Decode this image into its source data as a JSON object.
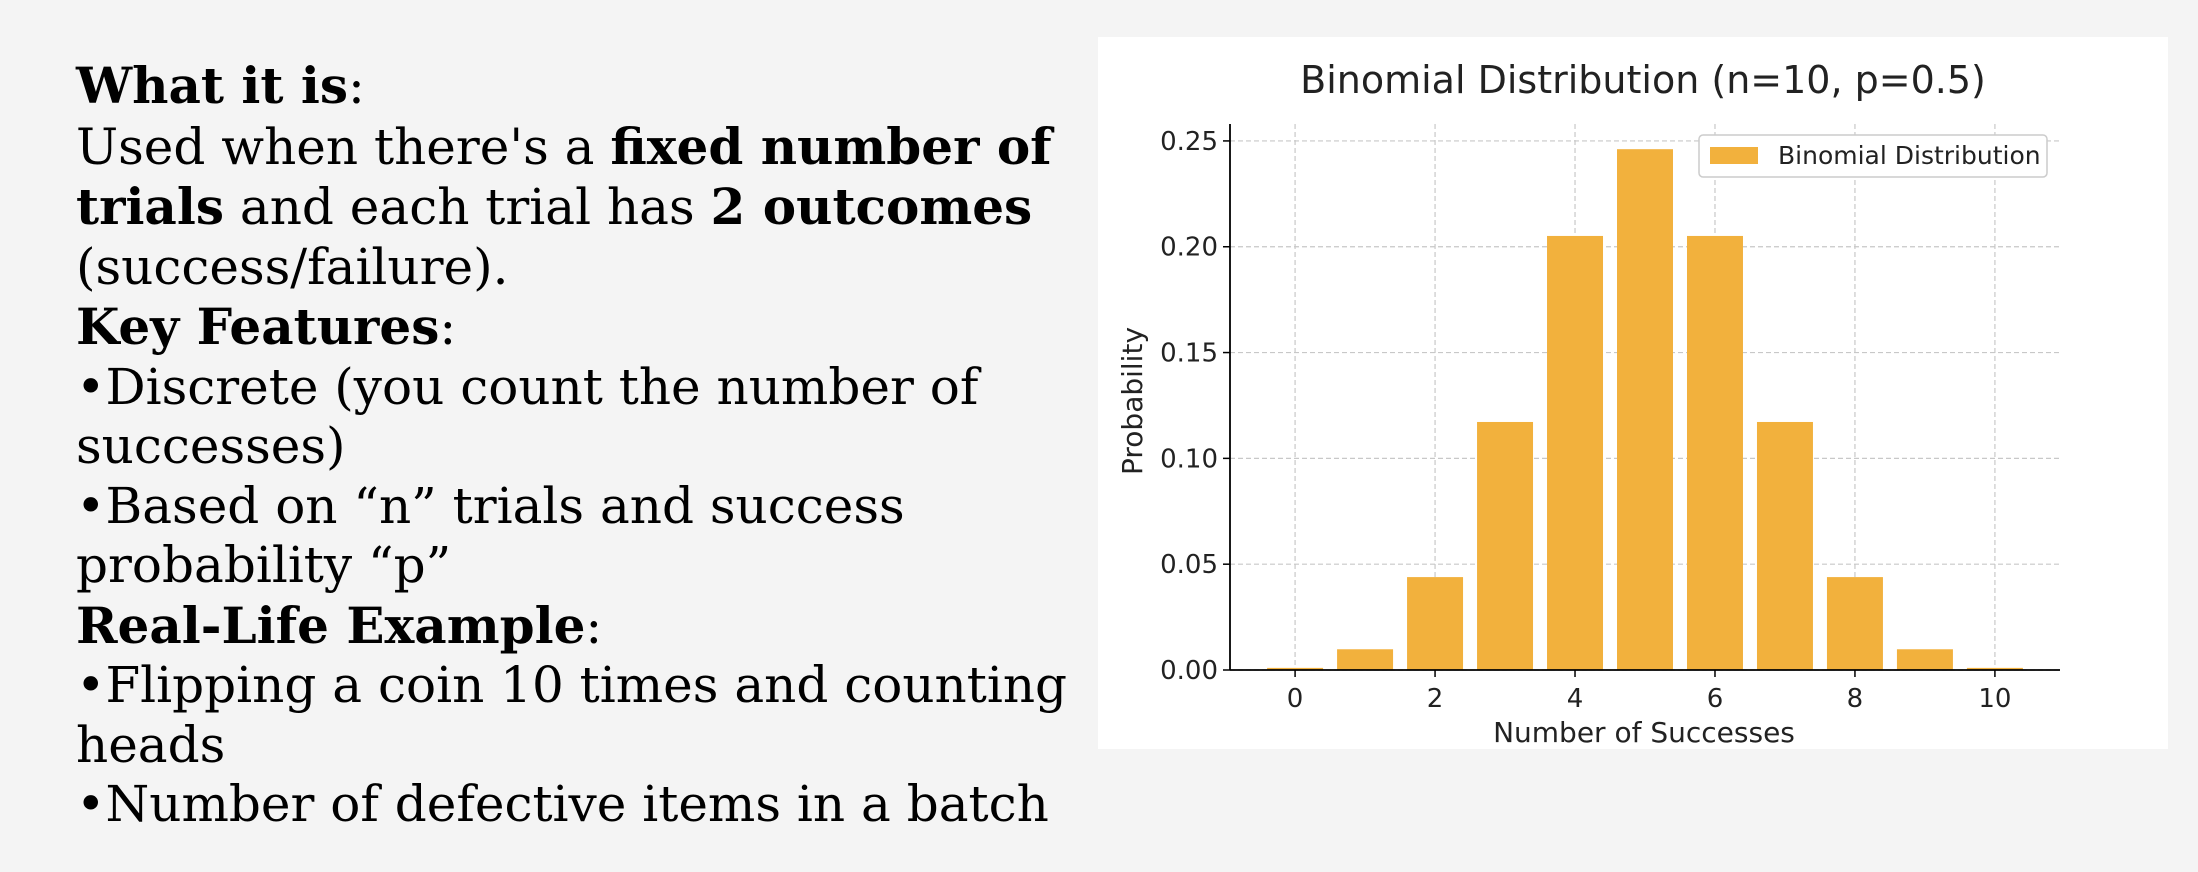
{
  "text_panel": {
    "what_heading": "What it is",
    "what_colon": ":",
    "what_line_prefix": "Used when there's a ",
    "what_bold_1": "fixed number of trials",
    "what_mid": " and each trial has ",
    "what_bold_2": "2 outcomes",
    "what_suffix": " (success/failure).",
    "features_heading": "Key Features",
    "features_colon": ":",
    "features": [
      "•Discrete (you count the number of successes)",
      "•Based on “n” trials and success probability “p”"
    ],
    "example_heading": "Real-Life Example",
    "example_colon": ":",
    "examples": [
      "•Flipping a coin 10 times and counting heads",
      "•Number of defective items in a batch"
    ]
  },
  "colors": {
    "bar": "#f2b13d",
    "grid": "#c8c8c8",
    "axis": "#000000",
    "background": "#f4f4f4",
    "card": "#ffffff"
  },
  "chart_data": {
    "type": "bar",
    "title": "Binomial Distribution (n=10, p=0.5)",
    "xlabel": "Number of Successes",
    "ylabel": "Probability",
    "x": [
      0,
      1,
      2,
      3,
      4,
      5,
      6,
      7,
      8,
      9,
      10
    ],
    "values": [
      0.001,
      0.0098,
      0.0439,
      0.1172,
      0.2051,
      0.2461,
      0.2051,
      0.1172,
      0.0439,
      0.0098,
      0.001
    ],
    "series": [
      {
        "name": "Binomial Distribution"
      }
    ],
    "xticks": [
      "0",
      "2",
      "4",
      "6",
      "8",
      "10"
    ],
    "yticks": [
      "0.00",
      "0.05",
      "0.10",
      "0.15",
      "0.20",
      "0.25"
    ],
    "xlim": [
      -0.93,
      10.93
    ],
    "ylim": [
      0,
      0.258
    ],
    "grid": true,
    "legend_position": "top-right"
  }
}
